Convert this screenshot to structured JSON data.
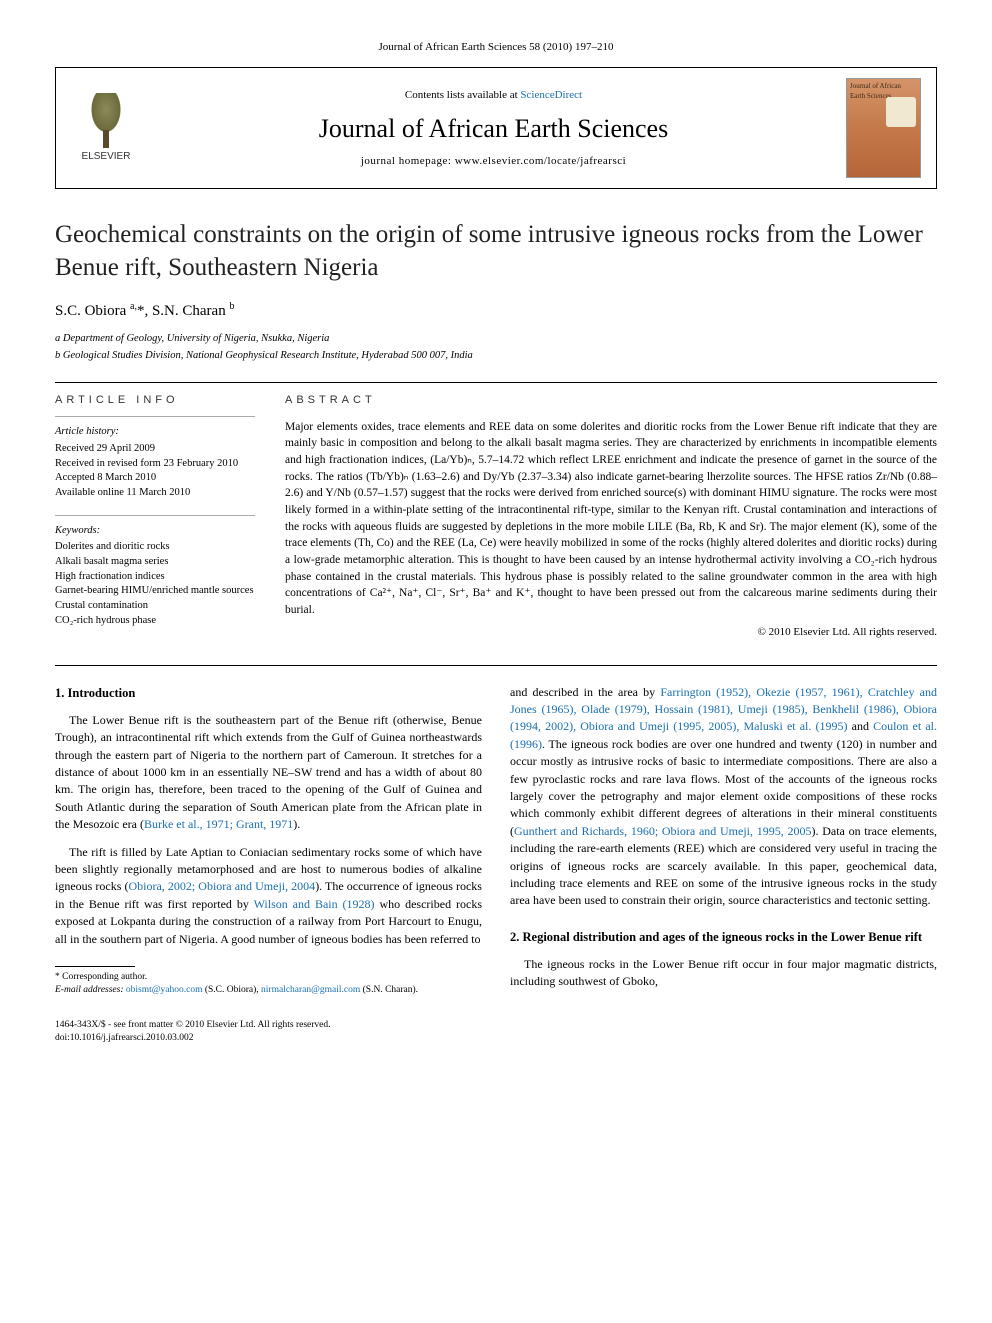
{
  "journal_ref": "Journal of African Earth Sciences 58 (2010) 197–210",
  "header": {
    "publisher": "ELSEVIER",
    "contents_prefix": "Contents lists available at ",
    "contents_link": "ScienceDirect",
    "journal_name": "Journal of African Earth Sciences",
    "homepage_label": "journal homepage: ",
    "homepage_url": "www.elsevier.com/locate/jafrearsci",
    "cover_title": "Journal of African Earth Sciences"
  },
  "title": "Geochemical constraints on the origin of some intrusive igneous rocks from the Lower Benue rift, Southeastern Nigeria",
  "authors_html": "S.C. Obiora <sup>a,</sup>*, S.N. Charan <sup>b</sup>",
  "affiliations": [
    "a Department of Geology, University of Nigeria, Nsukka, Nigeria",
    "b Geological Studies Division, National Geophysical Research Institute, Hyderabad 500 007, India"
  ],
  "article_info": {
    "heading": "ARTICLE INFO",
    "history_label": "Article history:",
    "history": [
      "Received 29 April 2009",
      "Received in revised form 23 February 2010",
      "Accepted 8 March 2010",
      "Available online 11 March 2010"
    ],
    "keywords_label": "Keywords:",
    "keywords": [
      "Dolerites and dioritic rocks",
      "Alkali basalt magma series",
      "High fractionation indices",
      "Garnet-bearing HIMU/enriched mantle sources",
      "Crustal contamination",
      "CO₂-rich hydrous phase"
    ]
  },
  "abstract": {
    "heading": "ABSTRACT",
    "text": "Major elements oxides, trace elements and REE data on some dolerites and dioritic rocks from the Lower Benue rift indicate that they are mainly basic in composition and belong to the alkali basalt magma series. They are characterized by enrichments in incompatible elements and high fractionation indices, (La/Yb)ₙ, 5.7–14.72 which reflect LREE enrichment and indicate the presence of garnet in the source of the rocks. The ratios (Tb/Yb)ₙ (1.63–2.6) and Dy/Yb (2.37–3.34) also indicate garnet-bearing lherzolite sources. The HFSE ratios Zr/Nb (0.88–2.6) and Y/Nb (0.57–1.57) suggest that the rocks were derived from enriched source(s) with dominant HIMU signature. The rocks were most likely formed in a within-plate setting of the intracontinental rift-type, similar to the Kenyan rift. Crustal contamination and interactions of the rocks with aqueous fluids are suggested by depletions in the more mobile LILE (Ba, Rb, K and Sr). The major element (K), some of the trace elements (Th, Co) and the REE (La, Ce) were heavily mobilized in some of the rocks (highly altered dolerites and dioritic rocks) during a low-grade metamorphic alteration. This is thought to have been caused by an intense hydrothermal activity involving a CO₂-rich hydrous phase contained in the crustal materials. This hydrous phase is possibly related to the saline groundwater common in the area with high concentrations of Ca²⁺, Na⁺, Cl⁻, Sr⁺, Ba⁺ and K⁺, thought to have been pressed out from the calcareous marine sediments during their burial.",
    "copyright": "© 2010 Elsevier Ltd. All rights reserved."
  },
  "sections": {
    "intro": {
      "heading": "1. Introduction",
      "p1": "The Lower Benue rift is the southeastern part of the Benue rift (otherwise, Benue Trough), an intracontinental rift which extends from the Gulf of Guinea northeastwards through the eastern part of Nigeria to the northern part of Cameroun. It stretches for a distance of about 1000 km in an essentially NE–SW trend and has a width of about 80 km. The origin has, therefore, been traced to the opening of the Gulf of Guinea and South Atlantic during the separation of South American plate from the African plate in the Mesozoic era (",
      "p1_cite": "Burke et al., 1971; Grant, 1971",
      "p1_end": ").",
      "p2a": "The rift is filled by Late Aptian to Coniacian sedimentary rocks some of which have been slightly regionally metamorphosed and are host to numerous bodies of alkaline igneous rocks (",
      "p2a_cite": "Obiora, 2002; Obiora and Umeji, 2004",
      "p2b": "). The occurrence of igneous rocks in the Benue rift was first reported by ",
      "p2b_cite": "Wilson and Bain (1928)",
      "p2c": " who described rocks exposed at Lokpanta during the construction of a railway from Port Harcourt to Enugu, all in the southern part of Nigeria. A good number of igneous bodies has been referred to",
      "col2_a": "and described in the area by ",
      "col2_cites": "Farrington (1952), Okezie (1957, 1961), Cratchley and Jones (1965), Olade (1979), Hossain (1981), Umeji (1985), Benkhelil (1986), Obiora (1994, 2002), Obiora and Umeji (1995, 2005), Maluski et al. (1995)",
      "col2_and": " and ",
      "col2_cite_last": "Coulon et al. (1996)",
      "col2_b": ". The igneous rock bodies are over one hundred and twenty (120) in number and occur mostly as intrusive rocks of basic to intermediate compositions. There are also a few pyroclastic rocks and rare lava flows. Most of the accounts of the igneous rocks largely cover the petrography and major element oxide compositions of these rocks which commonly exhibit different degrees of alterations in their mineral constituents (",
      "col2_b_cite": "Gunthert and Richards, 1960; Obiora and Umeji, 1995, 2005",
      "col2_c": "). Data on trace elements, including the rare-earth elements (REE) which are considered very useful in tracing the origins of igneous rocks are scarcely available. In this paper, geochemical data, including trace elements and REE on some of the intrusive igneous rocks in the study area have been used to constrain their origin, source characteristics and tectonic setting."
    },
    "regional": {
      "heading": "2. Regional distribution and ages of the igneous rocks in the Lower Benue rift",
      "p1": "The igneous rocks in the Lower Benue rift occur in four major magmatic districts, including southwest of Gboko,"
    }
  },
  "footnotes": {
    "corr": "* Corresponding author.",
    "emails_label": "E-mail addresses: ",
    "email1": "obismt@yahoo.com",
    "email1_who": " (S.C. Obiora), ",
    "email2": "nirmalcharan@gmail.com",
    "email2_who": " (S.N. Charan)."
  },
  "bottom": {
    "left1": "1464-343X/$ - see front matter © 2010 Elsevier Ltd. All rights reserved.",
    "left2": "doi:10.1016/j.jafrearsci.2010.03.002"
  },
  "colors": {
    "link": "#1a6fb0",
    "text": "#000000",
    "bg": "#ffffff"
  }
}
